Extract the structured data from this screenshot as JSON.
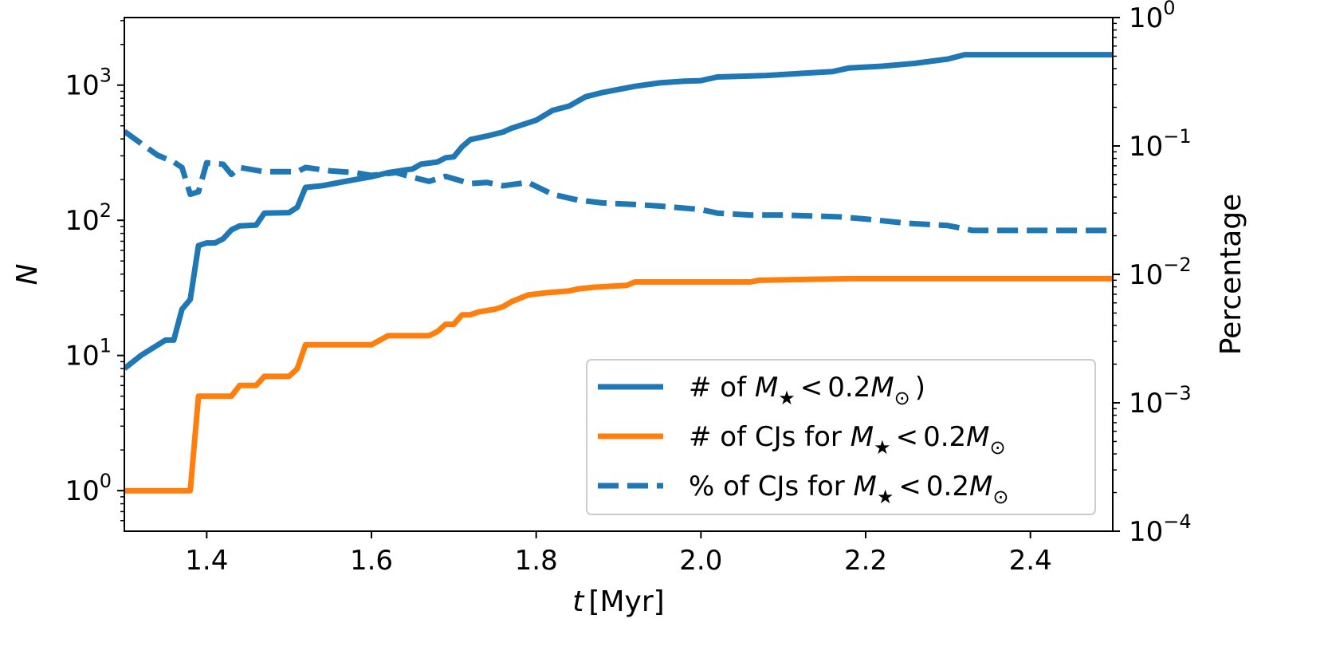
{
  "chart_data": {
    "type": "line",
    "xlabel": {
      "var": "t",
      "unit": "[Myr]"
    },
    "ylabel": "N",
    "ylabel_right": "Percentage",
    "xlim": [
      1.3,
      2.5
    ],
    "ylim_log10": [
      -0.3,
      3.5
    ],
    "ylim_right_log10": [
      -4,
      0
    ],
    "x_ticks": [
      1.4,
      1.6,
      1.8,
      2.0,
      2.2,
      2.4
    ],
    "x_tick_labels": [
      "1.4",
      "1.6",
      "1.8",
      "2.0",
      "2.2",
      "2.4"
    ],
    "y_tick_exponents": [
      0,
      1,
      2,
      3
    ],
    "y_right_tick_exponents": [
      -4,
      -3,
      -2,
      -1,
      0
    ],
    "series": [
      {
        "name": "# of M★ < 0.2M⊙)",
        "axis": "left",
        "color": "#1f77b4",
        "dash": "solid",
        "points": [
          [
            1.3,
            8
          ],
          [
            1.32,
            10
          ],
          [
            1.35,
            13
          ],
          [
            1.36,
            13
          ],
          [
            1.37,
            22
          ],
          [
            1.38,
            26
          ],
          [
            1.39,
            65
          ],
          [
            1.4,
            68
          ],
          [
            1.41,
            68
          ],
          [
            1.42,
            73
          ],
          [
            1.43,
            85
          ],
          [
            1.44,
            91
          ],
          [
            1.46,
            92
          ],
          [
            1.47,
            113
          ],
          [
            1.5,
            114
          ],
          [
            1.51,
            125
          ],
          [
            1.52,
            175
          ],
          [
            1.54,
            180
          ],
          [
            1.56,
            190
          ],
          [
            1.58,
            200
          ],
          [
            1.6,
            210
          ],
          [
            1.62,
            225
          ],
          [
            1.64,
            235
          ],
          [
            1.65,
            240
          ],
          [
            1.66,
            260
          ],
          [
            1.68,
            270
          ],
          [
            1.69,
            290
          ],
          [
            1.7,
            295
          ],
          [
            1.71,
            350
          ],
          [
            1.72,
            395
          ],
          [
            1.74,
            420
          ],
          [
            1.76,
            450
          ],
          [
            1.77,
            480
          ],
          [
            1.8,
            550
          ],
          [
            1.82,
            650
          ],
          [
            1.84,
            700
          ],
          [
            1.86,
            820
          ],
          [
            1.88,
            880
          ],
          [
            1.92,
            980
          ],
          [
            1.95,
            1040
          ],
          [
            1.98,
            1070
          ],
          [
            2.0,
            1080
          ],
          [
            2.02,
            1150
          ],
          [
            2.06,
            1170
          ],
          [
            2.08,
            1180
          ],
          [
            2.12,
            1220
          ],
          [
            2.16,
            1260
          ],
          [
            2.18,
            1340
          ],
          [
            2.22,
            1380
          ],
          [
            2.26,
            1450
          ],
          [
            2.3,
            1560
          ],
          [
            2.32,
            1680
          ],
          [
            2.5,
            1680
          ]
        ]
      },
      {
        "name": "# of CJs for M★ < 0.2M⊙",
        "axis": "left",
        "color": "#ff7f0e",
        "dash": "solid",
        "points": [
          [
            1.3,
            1
          ],
          [
            1.38,
            1
          ],
          [
            1.39,
            5
          ],
          [
            1.43,
            5
          ],
          [
            1.44,
            6
          ],
          [
            1.46,
            6
          ],
          [
            1.47,
            7
          ],
          [
            1.5,
            7
          ],
          [
            1.51,
            8
          ],
          [
            1.52,
            12
          ],
          [
            1.6,
            12
          ],
          [
            1.62,
            14
          ],
          [
            1.67,
            14
          ],
          [
            1.68,
            15
          ],
          [
            1.69,
            17
          ],
          [
            1.7,
            17
          ],
          [
            1.71,
            20
          ],
          [
            1.72,
            20
          ],
          [
            1.73,
            21
          ],
          [
            1.75,
            22
          ],
          [
            1.76,
            23
          ],
          [
            1.77,
            25
          ],
          [
            1.79,
            28
          ],
          [
            1.81,
            29
          ],
          [
            1.84,
            30
          ],
          [
            1.85,
            31
          ],
          [
            1.87,
            32
          ],
          [
            1.91,
            33
          ],
          [
            1.92,
            35
          ],
          [
            2.06,
            35
          ],
          [
            2.07,
            36
          ],
          [
            2.18,
            37
          ],
          [
            2.5,
            37
          ]
        ]
      },
      {
        "name": "% of CJs for M★ < 0.2M⊙",
        "axis": "right",
        "color": "#1f77b4",
        "dash": "dashed",
        "points": [
          [
            1.3,
            0.13
          ],
          [
            1.32,
            0.105
          ],
          [
            1.34,
            0.085
          ],
          [
            1.36,
            0.075
          ],
          [
            1.37,
            0.068
          ],
          [
            1.38,
            0.042
          ],
          [
            1.39,
            0.044
          ],
          [
            1.4,
            0.074
          ],
          [
            1.42,
            0.072
          ],
          [
            1.43,
            0.06
          ],
          [
            1.44,
            0.068
          ],
          [
            1.47,
            0.063
          ],
          [
            1.51,
            0.063
          ],
          [
            1.52,
            0.068
          ],
          [
            1.55,
            0.064
          ],
          [
            1.58,
            0.062
          ],
          [
            1.6,
            0.059
          ],
          [
            1.63,
            0.062
          ],
          [
            1.65,
            0.057
          ],
          [
            1.67,
            0.053
          ],
          [
            1.69,
            0.058
          ],
          [
            1.72,
            0.051
          ],
          [
            1.74,
            0.052
          ],
          [
            1.76,
            0.049
          ],
          [
            1.79,
            0.052
          ],
          [
            1.82,
            0.042
          ],
          [
            1.85,
            0.038
          ],
          [
            1.88,
            0.036
          ],
          [
            1.92,
            0.035
          ],
          [
            1.95,
            0.034
          ],
          [
            2.0,
            0.032
          ],
          [
            2.02,
            0.03
          ],
          [
            2.06,
            0.029
          ],
          [
            2.1,
            0.029
          ],
          [
            2.17,
            0.028
          ],
          [
            2.2,
            0.027
          ],
          [
            2.25,
            0.025
          ],
          [
            2.3,
            0.024
          ],
          [
            2.33,
            0.022
          ],
          [
            2.5,
            0.022
          ]
        ]
      }
    ],
    "legend": {
      "position": "lower-right",
      "entries": [
        {
          "prefix": "# of ",
          "math": "M★ < 0.2M⊙",
          "suffix": ")"
        },
        {
          "prefix": "# of CJs for ",
          "math": "M★ < 0.2M⊙",
          "suffix": ""
        },
        {
          "prefix": "% of CJs for ",
          "math": "M★ < 0.2M⊙",
          "suffix": ""
        }
      ]
    }
  }
}
